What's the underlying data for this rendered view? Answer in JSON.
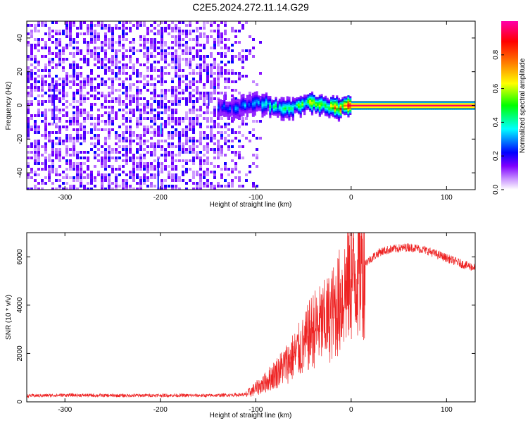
{
  "figure": {
    "title": "C2E5.2024.272.11.14.G29"
  },
  "chart_data": [
    {
      "type": "heatmap",
      "xlabel": "Height of straight line (km)",
      "ylabel": "Frequency (Hz)",
      "xlim": [
        -340,
        130
      ],
      "ylim": [
        -50,
        50
      ],
      "xticks": [
        -300,
        -200,
        -100,
        0,
        100
      ],
      "yticks": [
        -40,
        -20,
        0,
        20,
        40
      ],
      "colorbar": {
        "label": "Normalized spectral amplitude",
        "range": [
          0,
          1
        ],
        "ticks": [
          0.0,
          0.2,
          0.4,
          0.6,
          0.8
        ],
        "colormap": [
          "#ffffff",
          "#cc99ff",
          "#7f00ff",
          "#0000ff",
          "#00ffff",
          "#00ff00",
          "#ffff00",
          "#ff7f00",
          "#ff0000",
          "#ff00aa"
        ]
      },
      "signal_line": {
        "x_start": -140,
        "x_end": 130,
        "center_freq": 0,
        "description_values": [
          {
            "x": -140,
            "peak": 0.25
          },
          {
            "x": -60,
            "peak": 0.55
          },
          {
            "x": -20,
            "peak": 0.75
          },
          {
            "x": 0,
            "peak": 0.95
          },
          {
            "x": 130,
            "peak": 0.95
          }
        ]
      },
      "noise_region": {
        "x_start": -340,
        "x_end": -100
      }
    },
    {
      "type": "line",
      "xlabel": "Height of straight line (km)",
      "ylabel": "SNR (10 * v/v)",
      "xlim": [
        -340,
        130
      ],
      "ylim": [
        0,
        7000
      ],
      "xticks": [
        -300,
        -200,
        -100,
        0,
        100
      ],
      "yticks": [
        0,
        2000,
        4000,
        6000
      ],
      "series": [
        {
          "color": "#ee2222",
          "x": [
            -340,
            -300,
            -250,
            -200,
            -150,
            -110,
            -90,
            -70,
            -50,
            -40,
            -30,
            -20,
            -10,
            0,
            10,
            20,
            30,
            40,
            50,
            60,
            70,
            80,
            90,
            100,
            110,
            120,
            130
          ],
          "y": [
            250,
            280,
            260,
            270,
            260,
            300,
            800,
            1500,
            2300,
            3000,
            3200,
            3600,
            4300,
            5200,
            5600,
            5900,
            6200,
            6300,
            6350,
            6400,
            6350,
            6250,
            6100,
            5950,
            5800,
            5650,
            5550
          ]
        }
      ]
    }
  ]
}
